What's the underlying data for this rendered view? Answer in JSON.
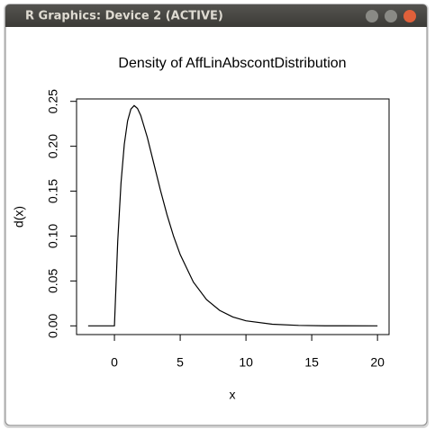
{
  "window": {
    "title": "R Graphics: Device 2 (ACTIVE)"
  },
  "chart_data": {
    "type": "line",
    "title": "Density of AffLinAbscontDistribution",
    "x_label": "x",
    "y_label": "d(x)",
    "color": "#000000",
    "x": [
      -2,
      -1,
      0,
      0.25,
      0.5,
      0.75,
      1,
      1.25,
      1.5,
      1.75,
      2,
      2.5,
      3,
      3.5,
      4,
      4.5,
      5,
      6,
      7,
      8,
      9,
      10,
      12,
      14,
      16,
      20
    ],
    "values": [
      0,
      0,
      0,
      0.0941,
      0.1592,
      0.2022,
      0.2282,
      0.2414,
      0.2453,
      0.2422,
      0.2343,
      0.2099,
      0.1804,
      0.1509,
      0.1236,
      0.0996,
      0.0794,
      0.0488,
      0.0293,
      0.0172,
      0.0099,
      0.0056,
      0.0018,
      0.0005,
      0.0001,
      0
    ],
    "xlim": [
      -2.88,
      20.88
    ],
    "ylim": [
      -0.0097,
      0.2527
    ],
    "xticks": [
      0,
      5,
      10,
      15,
      20
    ],
    "yticks": [
      {
        "value": 0,
        "label": "0.00"
      },
      {
        "value": 0.05,
        "label": "0.05"
      },
      {
        "value": 0.1,
        "label": "0.10"
      },
      {
        "value": 0.15,
        "label": "0.15"
      },
      {
        "value": 0.2,
        "label": "0.20"
      },
      {
        "value": 0.25,
        "label": "0.25"
      }
    ]
  }
}
